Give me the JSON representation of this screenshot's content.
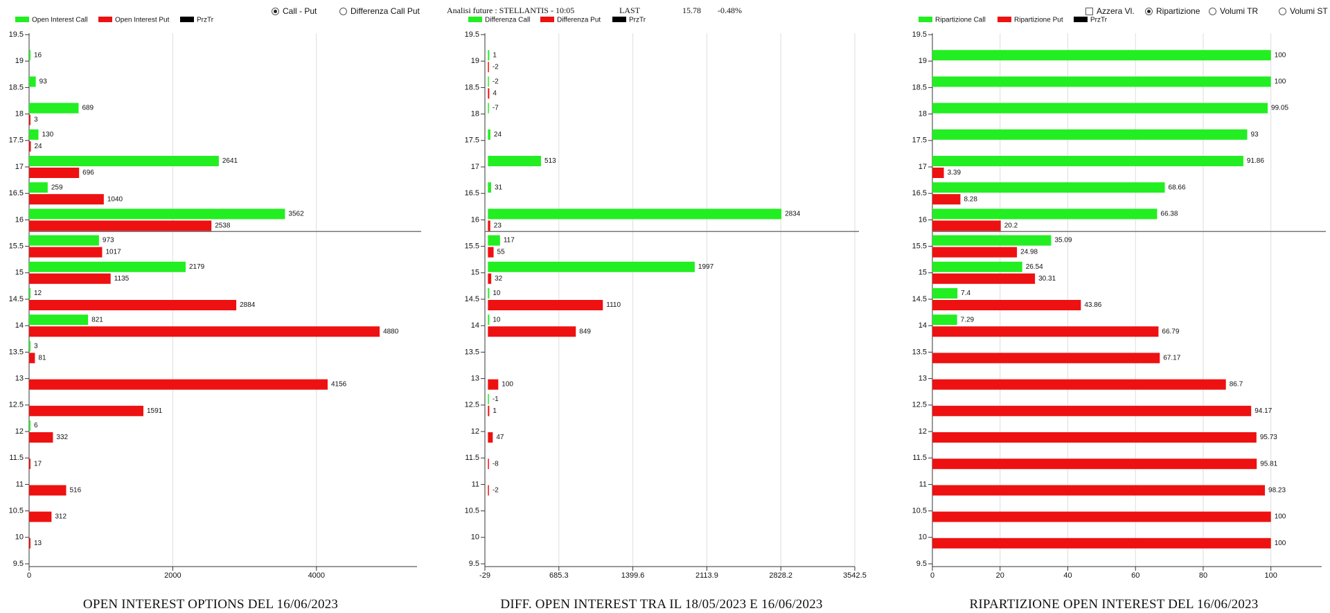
{
  "controls": {
    "mode_call_put": "Call - Put",
    "mode_diff": "Differenza Call Put",
    "azzera": "Azzera Vl.",
    "ripartizione": "Ripartizione",
    "volumi_tr": "Volumi TR",
    "volumi_st": "Volumi ST"
  },
  "header_info": {
    "analisi": "Analisi future : STELLANTIS - 10:05",
    "last_label": "LAST",
    "last_value": "15.78",
    "change": "-0.48%"
  },
  "colors": {
    "call": "#22ee22",
    "put": "#ee1111",
    "prztr": "#000000"
  },
  "chart_data": [
    {
      "type": "bar",
      "orientation": "horizontal",
      "title": "OPEN INTEREST OPTIONS DEL 16/06/2023",
      "legend": [
        "Open Interest Call",
        "Open Interest Put",
        "PrzTr"
      ],
      "categories": [
        "19.5",
        "19",
        "18.5",
        "18",
        "17.5",
        "17",
        "16.5",
        "16",
        "15.5",
        "15",
        "14.5",
        "14",
        "13.5",
        "13",
        "12.5",
        "12",
        "11.5",
        "11",
        "10.5",
        "10",
        "9.5"
      ],
      "series": [
        {
          "name": "Open Interest Call",
          "values": [
            null,
            16,
            93,
            689,
            130,
            2641,
            259,
            3562,
            973,
            2179,
            12,
            821,
            3,
            null,
            null,
            6,
            null,
            null,
            null,
            null,
            null
          ]
        },
        {
          "name": "Open Interest Put",
          "values": [
            null,
            null,
            null,
            3,
            24,
            696,
            1040,
            2538,
            1017,
            1135,
            2884,
            4880,
            81,
            4156,
            1591,
            332,
            17,
            516,
            312,
            13,
            null
          ]
        }
      ],
      "xlim": [
        0,
        5400
      ],
      "xticks": [
        "0",
        "2000",
        "4000"
      ],
      "xtick_values": [
        0,
        2000,
        4000
      ],
      "reference_line": 15.78
    },
    {
      "type": "bar",
      "orientation": "horizontal",
      "title": "DIFF. OPEN INTEREST TRA IL 18/05/2023 E 16/06/2023",
      "legend": [
        "Differenza Call",
        "Differenza Put",
        "PrzTr"
      ],
      "categories": [
        "19.5",
        "19",
        "18.5",
        "18",
        "17.5",
        "17",
        "16.5",
        "16",
        "15.5",
        "15",
        "14.5",
        "14",
        "13.5",
        "13",
        "12.5",
        "12",
        "11.5",
        "11",
        "10.5",
        "10",
        "9.5"
      ],
      "series": [
        {
          "name": "Differenza Call",
          "values": [
            null,
            1,
            -2,
            -7,
            24,
            513,
            31,
            2834,
            117,
            1997,
            10,
            10,
            null,
            null,
            -1,
            null,
            null,
            null,
            null,
            null,
            null
          ]
        },
        {
          "name": "Differenza Put",
          "values": [
            null,
            -2,
            4,
            null,
            null,
            null,
            null,
            23,
            55,
            32,
            1110,
            849,
            null,
            100,
            1,
            47,
            -8,
            -2,
            null,
            null,
            null
          ]
        }
      ],
      "xlim": [
        -29,
        3542.5
      ],
      "xticks": [
        "-29",
        "685.3",
        "1399.6",
        "2113.9",
        "2828.2",
        "3542.5"
      ],
      "xtick_values": [
        -29,
        685.3,
        1399.6,
        2113.9,
        2828.2,
        3542.5
      ],
      "reference_line": 15.78
    },
    {
      "type": "bar",
      "orientation": "horizontal",
      "title": "RIPARTIZIONE OPEN INTEREST DEL 16/06/2023",
      "legend": [
        "Ripartizione Call",
        "Ripartizione Put",
        "PrzTr"
      ],
      "categories": [
        "19.5",
        "19",
        "18.5",
        "18",
        "17.5",
        "17",
        "16.5",
        "16",
        "15.5",
        "15",
        "14.5",
        "14",
        "13.5",
        "13",
        "12.5",
        "12",
        "11.5",
        "11",
        "10.5",
        "10",
        "9.5"
      ],
      "series": [
        {
          "name": "Ripartizione Call",
          "values": [
            null,
            100,
            100,
            99.05,
            93,
            91.86,
            68.66,
            66.38,
            35.09,
            26.54,
            7.4,
            7.29,
            null,
            null,
            null,
            null,
            null,
            null,
            null,
            null,
            null
          ]
        },
        {
          "name": "Ripartizione Put",
          "values": [
            null,
            null,
            null,
            null,
            null,
            3.39,
            8.28,
            20.2,
            24.98,
            30.31,
            43.86,
            66.79,
            67.17,
            86.7,
            94.17,
            95.73,
            95.81,
            98.23,
            100,
            100,
            null
          ]
        }
      ],
      "xlim": [
        0,
        115
      ],
      "xticks": [
        "0",
        "20",
        "40",
        "60",
        "80",
        "100"
      ],
      "xtick_values": [
        0,
        20,
        40,
        60,
        80,
        100
      ],
      "reference_line": 15.78
    }
  ]
}
